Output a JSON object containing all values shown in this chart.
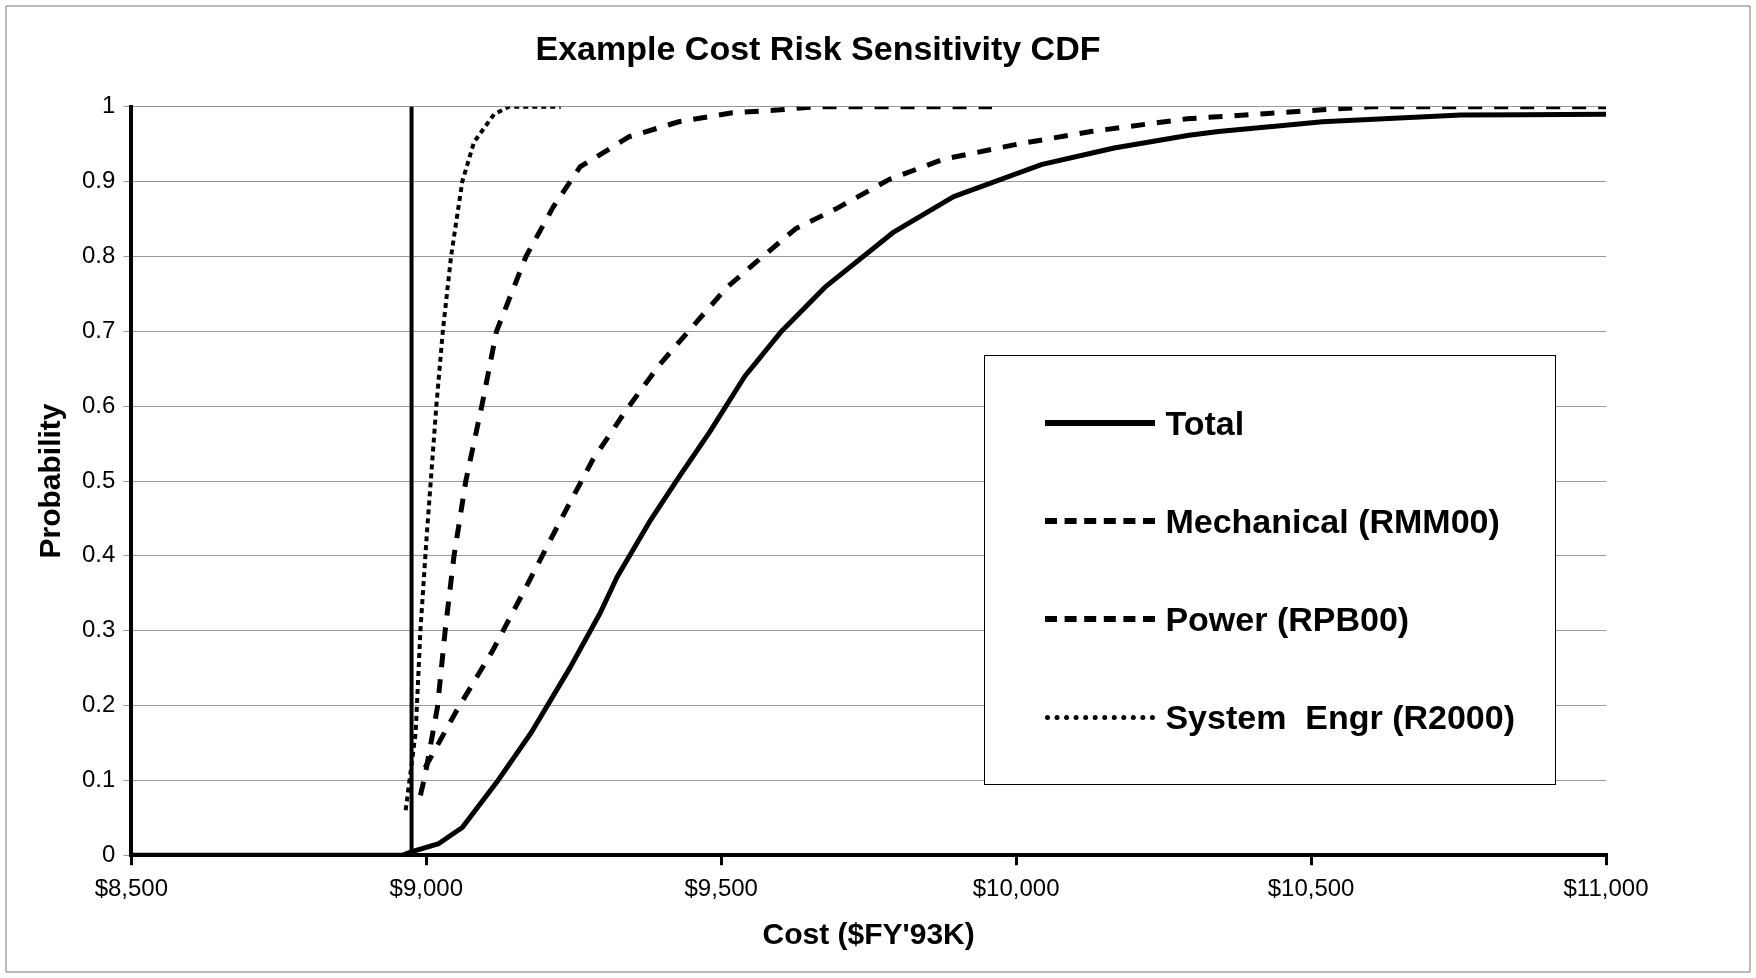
{
  "chart_data": {
    "type": "line",
    "title": "Example Cost Risk Sensitivity CDF",
    "xlabel": "Cost ($FY'93K)",
    "ylabel": "Probability",
    "xlim": [
      8500,
      11000
    ],
    "ylim": [
      0,
      1
    ],
    "xticks": [
      {
        "value": 8500,
        "label": "$8,500"
      },
      {
        "value": 9000,
        "label": "$9,000"
      },
      {
        "value": 9500,
        "label": "$9,500"
      },
      {
        "value": 10000,
        "label": "$10,000"
      },
      {
        "value": 10500,
        "label": "$10,500"
      },
      {
        "value": 11000,
        "label": "$11,000"
      }
    ],
    "yticks": [
      0,
      0.1,
      0.2,
      0.3,
      0.4,
      0.5,
      0.6,
      0.7,
      0.8,
      0.9,
      1
    ],
    "grid": "y",
    "legend": "right",
    "marker": "none",
    "ref_lines": [
      {
        "axis": "x",
        "value": 8975,
        "color": "#000000",
        "line_style": "solid"
      }
    ],
    "series": [
      {
        "name": "Total",
        "color": "#000000",
        "line_style": "solid",
        "x": [
          8500,
          8960,
          8977,
          9020,
          9061,
          9119,
          9178,
          9244,
          9295,
          9323,
          9378,
          9428,
          9480,
          9540,
          9601,
          9676,
          9793,
          9894,
          10044,
          10127,
          10166,
          10293,
          10343,
          10519,
          10754,
          11000
        ],
        "values": [
          0,
          0,
          0.005,
          0.015,
          0.037,
          0.097,
          0.164,
          0.251,
          0.324,
          0.371,
          0.445,
          0.505,
          0.565,
          0.64,
          0.699,
          0.759,
          0.833,
          0.88,
          0.923,
          0.938,
          0.945,
          0.962,
          0.967,
          0.98,
          0.989,
          0.99
        ]
      },
      {
        "name": "Mechanical (RMM00)",
        "color": "#000000",
        "line_style": "dashed",
        "x": [
          8998,
          9052,
          9113,
          9169,
          9228,
          9282,
          9340,
          9395,
          9461,
          9510,
          9560,
          9626,
          9693,
          9785,
          9877,
          10002,
          10127,
          10290,
          10519,
          10600,
          11000
        ],
        "values": [
          0.117,
          0.194,
          0.274,
          0.358,
          0.448,
          0.528,
          0.596,
          0.655,
          0.715,
          0.759,
          0.793,
          0.837,
          0.863,
          0.903,
          0.93,
          0.95,
          0.967,
          0.984,
          0.996,
          1,
          1
        ]
      },
      {
        "name": "Power (RPB00)",
        "color": "#000000",
        "line_style": "dashed",
        "x": [
          8990,
          8998,
          9019,
          9032,
          9047,
          9067,
          9094,
          9119,
          9169,
          9215,
          9261,
          9282,
          9344,
          9428,
          9519,
          9600,
          9659,
          9959
        ],
        "values": [
          0.08,
          0.107,
          0.198,
          0.3,
          0.4,
          0.5,
          0.6,
          0.7,
          0.8,
          0.866,
          0.92,
          0.93,
          0.96,
          0.98,
          0.992,
          0.996,
          1,
          1
        ]
      },
      {
        "name": "System  Engr (R2000)",
        "color": "#000000",
        "line_style": "dotted",
        "x": [
          8965,
          8982,
          8990,
          9001,
          9017,
          9028,
          9042,
          9061,
          9081,
          9115,
          9140,
          9228
        ],
        "values": [
          0.06,
          0.164,
          0.3,
          0.43,
          0.6,
          0.7,
          0.8,
          0.9,
          0.953,
          0.99,
          1,
          1
        ]
      }
    ]
  }
}
